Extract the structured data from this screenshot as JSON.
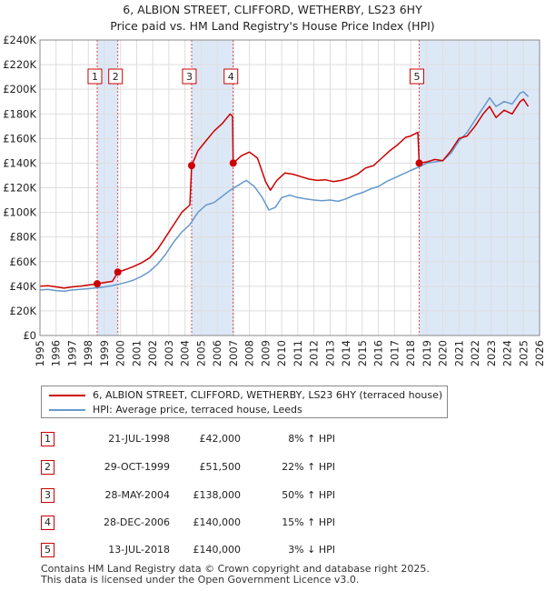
{
  "title": {
    "line1": "6, ALBION STREET, CLIFFORD, WETHERBY, LS23 6HY",
    "line2": "Price paid vs. HM Land Registry's House Price Index (HPI)"
  },
  "colors": {
    "price_line": "#cc0000",
    "hpi_line": "#6699cc",
    "shade": "#dde8f7",
    "grid": "#dddddd",
    "marker_line": "#cc0000"
  },
  "chart_data": {
    "type": "line",
    "xlim": [
      1995,
      2026
    ],
    "ylim": [
      0,
      240000
    ],
    "x_ticks": [
      "1995",
      "1996",
      "1997",
      "1998",
      "1999",
      "2000",
      "2001",
      "2002",
      "2003",
      "2004",
      "2005",
      "2006",
      "2007",
      "2008",
      "2009",
      "2010",
      "2011",
      "2012",
      "2013",
      "2014",
      "2015",
      "2016",
      "2017",
      "2018",
      "2019",
      "2020",
      "2021",
      "2022",
      "2023",
      "2024",
      "2025",
      "2026"
    ],
    "y_ticks": [
      {
        "value": 0,
        "label": "£0"
      },
      {
        "value": 20000,
        "label": "£20K"
      },
      {
        "value": 40000,
        "label": "£40K"
      },
      {
        "value": 60000,
        "label": "£60K"
      },
      {
        "value": 80000,
        "label": "£80K"
      },
      {
        "value": 100000,
        "label": "£100K"
      },
      {
        "value": 120000,
        "label": "£120K"
      },
      {
        "value": 140000,
        "label": "£140K"
      },
      {
        "value": 160000,
        "label": "£160K"
      },
      {
        "value": 180000,
        "label": "£180K"
      },
      {
        "value": 200000,
        "label": "£200K"
      },
      {
        "value": 220000,
        "label": "£220K"
      },
      {
        "value": 240000,
        "label": "£240K"
      }
    ],
    "shaded_ranges": [
      [
        1998.55,
        1999.83
      ],
      [
        2004.41,
        2006.99
      ],
      [
        2018.53,
        2026.0
      ]
    ],
    "sale_markers": [
      {
        "label": "1",
        "x": 1998.55,
        "y": 42000
      },
      {
        "label": "2",
        "x": 1999.83,
        "y": 51500
      },
      {
        "label": "3",
        "x": 2004.41,
        "y": 138000
      },
      {
        "label": "4",
        "x": 2006.99,
        "y": 140000
      },
      {
        "label": "5",
        "x": 2018.53,
        "y": 140000
      }
    ],
    "series": [
      {
        "name": "6, ALBION STREET, CLIFFORD, WETHERBY, LS23 6HY (terraced house)",
        "points": [
          [
            1995.0,
            40000
          ],
          [
            1995.5,
            40500
          ],
          [
            1996.0,
            39500
          ],
          [
            1996.5,
            38500
          ],
          [
            1997.0,
            39500
          ],
          [
            1997.5,
            40000
          ],
          [
            1998.0,
            41000
          ],
          [
            1998.55,
            42000
          ],
          [
            1999.0,
            43000
          ],
          [
            1999.5,
            44000
          ],
          [
            1999.83,
            51500
          ],
          [
            2000.3,
            53500
          ],
          [
            2000.8,
            56000
          ],
          [
            2001.3,
            59000
          ],
          [
            2001.8,
            63000
          ],
          [
            2002.3,
            70000
          ],
          [
            2002.8,
            80000
          ],
          [
            2003.3,
            90000
          ],
          [
            2003.8,
            100000
          ],
          [
            2004.3,
            106000
          ],
          [
            2004.41,
            138000
          ],
          [
            2004.8,
            150000
          ],
          [
            2005.3,
            158000
          ],
          [
            2005.8,
            166000
          ],
          [
            2006.3,
            172000
          ],
          [
            2006.8,
            180000
          ],
          [
            2006.95,
            178000
          ],
          [
            2006.99,
            140000
          ],
          [
            2007.5,
            146000
          ],
          [
            2008.0,
            149000
          ],
          [
            2008.5,
            144000
          ],
          [
            2009.0,
            125000
          ],
          [
            2009.3,
            118000
          ],
          [
            2009.7,
            126000
          ],
          [
            2010.2,
            132000
          ],
          [
            2010.7,
            131000
          ],
          [
            2011.2,
            129000
          ],
          [
            2011.7,
            127000
          ],
          [
            2012.2,
            126000
          ],
          [
            2012.7,
            126500
          ],
          [
            2013.2,
            125000
          ],
          [
            2013.7,
            126000
          ],
          [
            2014.2,
            128000
          ],
          [
            2014.7,
            131000
          ],
          [
            2015.2,
            136000
          ],
          [
            2015.7,
            138000
          ],
          [
            2016.2,
            144000
          ],
          [
            2016.7,
            150000
          ],
          [
            2017.2,
            155000
          ],
          [
            2017.7,
            161000
          ],
          [
            2018.0,
            162000
          ],
          [
            2018.45,
            165000
          ],
          [
            2018.53,
            140000
          ],
          [
            2019.0,
            141000
          ],
          [
            2019.5,
            143000
          ],
          [
            2020.0,
            142000
          ],
          [
            2020.5,
            150000
          ],
          [
            2021.0,
            160000
          ],
          [
            2021.5,
            162000
          ],
          [
            2022.0,
            170000
          ],
          [
            2022.5,
            180000
          ],
          [
            2022.9,
            186000
          ],
          [
            2023.3,
            177000
          ],
          [
            2023.8,
            183000
          ],
          [
            2024.3,
            180000
          ],
          [
            2024.8,
            190000
          ],
          [
            2025.0,
            192000
          ],
          [
            2025.3,
            186000
          ]
        ]
      },
      {
        "name": "HPI: Average price, terraced house, Leeds",
        "points": [
          [
            1995.0,
            37000
          ],
          [
            1995.5,
            37500
          ],
          [
            1996.0,
            36500
          ],
          [
            1996.5,
            36000
          ],
          [
            1997.0,
            37000
          ],
          [
            1997.5,
            37500
          ],
          [
            1998.0,
            38000
          ],
          [
            1998.55,
            38800
          ],
          [
            1999.0,
            39500
          ],
          [
            1999.5,
            40500
          ],
          [
            1999.83,
            41500
          ],
          [
            2000.3,
            43000
          ],
          [
            2000.8,
            45000
          ],
          [
            2001.3,
            48000
          ],
          [
            2001.8,
            52000
          ],
          [
            2002.3,
            58000
          ],
          [
            2002.8,
            66000
          ],
          [
            2003.3,
            76000
          ],
          [
            2003.8,
            84000
          ],
          [
            2004.3,
            90000
          ],
          [
            2004.8,
            100000
          ],
          [
            2005.3,
            106000
          ],
          [
            2005.8,
            108000
          ],
          [
            2006.3,
            113000
          ],
          [
            2006.8,
            118000
          ],
          [
            2007.3,
            122000
          ],
          [
            2007.8,
            126000
          ],
          [
            2008.3,
            121000
          ],
          [
            2008.8,
            112000
          ],
          [
            2009.2,
            102000
          ],
          [
            2009.6,
            104000
          ],
          [
            2010.0,
            112000
          ],
          [
            2010.5,
            114000
          ],
          [
            2011.0,
            112000
          ],
          [
            2011.5,
            111000
          ],
          [
            2012.0,
            110000
          ],
          [
            2012.5,
            109500
          ],
          [
            2013.0,
            110000
          ],
          [
            2013.5,
            109000
          ],
          [
            2014.0,
            111000
          ],
          [
            2014.5,
            114000
          ],
          [
            2015.0,
            116000
          ],
          [
            2015.5,
            119000
          ],
          [
            2016.0,
            121000
          ],
          [
            2016.5,
            125000
          ],
          [
            2017.0,
            128000
          ],
          [
            2017.5,
            131000
          ],
          [
            2018.0,
            134000
          ],
          [
            2018.53,
            137000
          ],
          [
            2019.0,
            140000
          ],
          [
            2019.5,
            141000
          ],
          [
            2020.0,
            142000
          ],
          [
            2020.5,
            148000
          ],
          [
            2021.0,
            158000
          ],
          [
            2021.5,
            165000
          ],
          [
            2022.0,
            175000
          ],
          [
            2022.5,
            185000
          ],
          [
            2022.9,
            193000
          ],
          [
            2023.3,
            186000
          ],
          [
            2023.8,
            190000
          ],
          [
            2024.3,
            188000
          ],
          [
            2024.8,
            197000
          ],
          [
            2025.0,
            198000
          ],
          [
            2025.3,
            194000
          ]
        ]
      }
    ]
  },
  "legend": {
    "price_label": "6, ALBION STREET, CLIFFORD, WETHERBY, LS23 6HY (terraced house)",
    "hpi_label": "HPI: Average price, terraced house, Leeds"
  },
  "sales": [
    {
      "num": "1",
      "date": "21-JUL-1998",
      "price": "£42,000",
      "hpi": "8% ↑ HPI"
    },
    {
      "num": "2",
      "date": "29-OCT-1999",
      "price": "£51,500",
      "hpi": "22% ↑ HPI"
    },
    {
      "num": "3",
      "date": "28-MAY-2004",
      "price": "£138,000",
      "hpi": "50% ↑ HPI"
    },
    {
      "num": "4",
      "date": "28-DEC-2006",
      "price": "£140,000",
      "hpi": "15% ↑ HPI"
    },
    {
      "num": "5",
      "date": "13-JUL-2018",
      "price": "£140,000",
      "hpi": "3% ↓ HPI"
    }
  ],
  "footer": {
    "line1": "Contains HM Land Registry data © Crown copyright and database right 2025.",
    "line2": "This data is licensed under the Open Government Licence v3.0."
  }
}
